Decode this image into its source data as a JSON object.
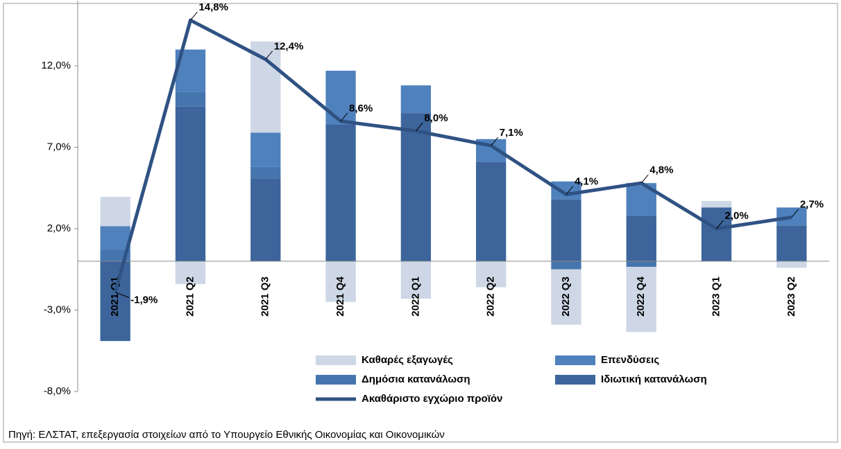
{
  "chart_data": {
    "type": "bar_line",
    "categories": [
      "2021 Q1",
      "2021 Q2",
      "2021 Q3",
      "2021 Q4",
      "2022 Q1",
      "2022 Q2",
      "2022 Q3",
      "2022 Q4",
      "2023 Q1",
      "2023 Q2"
    ],
    "series": [
      {
        "name": "Καθαρές εξαγωγές",
        "color": "#cdd7e6",
        "values": [
          1.8,
          -1.4,
          5.6,
          -2.5,
          -2.3,
          -1.6,
          -3.4,
          -4.0,
          0.4,
          -0.4
        ]
      },
      {
        "name": "Επενδύσεις",
        "color": "#4f81bd",
        "values": [
          1.45,
          2.6,
          2.1,
          3.3,
          1.7,
          1.4,
          1.1,
          2.0,
          0,
          1.1
        ]
      },
      {
        "name": "Δημόσια κατανάλωση",
        "color": "#4675ae",
        "values": [
          0.7,
          0.9,
          0.7,
          0,
          0,
          0,
          -0.5,
          -0.35,
          0,
          0
        ]
      },
      {
        "name": "Ιδιωτική κατανάλωση",
        "color": "#3d659b",
        "values": [
          -4.9,
          9.5,
          5.1,
          8.4,
          9.1,
          6.1,
          3.8,
          2.8,
          3.3,
          2.2
        ]
      }
    ],
    "line": {
      "name": "Ακαθάριστο εγχώριο προϊόν",
      "color": "#2f5283",
      "values": [
        -1.9,
        14.8,
        12.4,
        8.6,
        8.0,
        7.1,
        4.1,
        4.8,
        2.0,
        2.7
      ],
      "value_labels": [
        "-1,9%",
        "14,8%",
        "12,4%",
        "8,6%",
        "8,0%",
        "7,1%",
        "4,1%",
        "4,8%",
        "2,0%",
        "2,7%"
      ]
    },
    "ylim": [
      -8,
      16
    ],
    "yticks": [
      {
        "value": -8,
        "label": "-8,0%"
      },
      {
        "value": -3,
        "label": "-3,0%"
      },
      {
        "value": 2,
        "label": "2,0%"
      },
      {
        "value": 7,
        "label": "7,0%"
      },
      {
        "value": 12,
        "label": "12,0%"
      }
    ],
    "source": "Πηγή: ΕΛΣΤΑΤ, επεξεργασία στοιχείων από το Υπουργείο Εθνικής Οικονομίας και Οικονομικών"
  }
}
